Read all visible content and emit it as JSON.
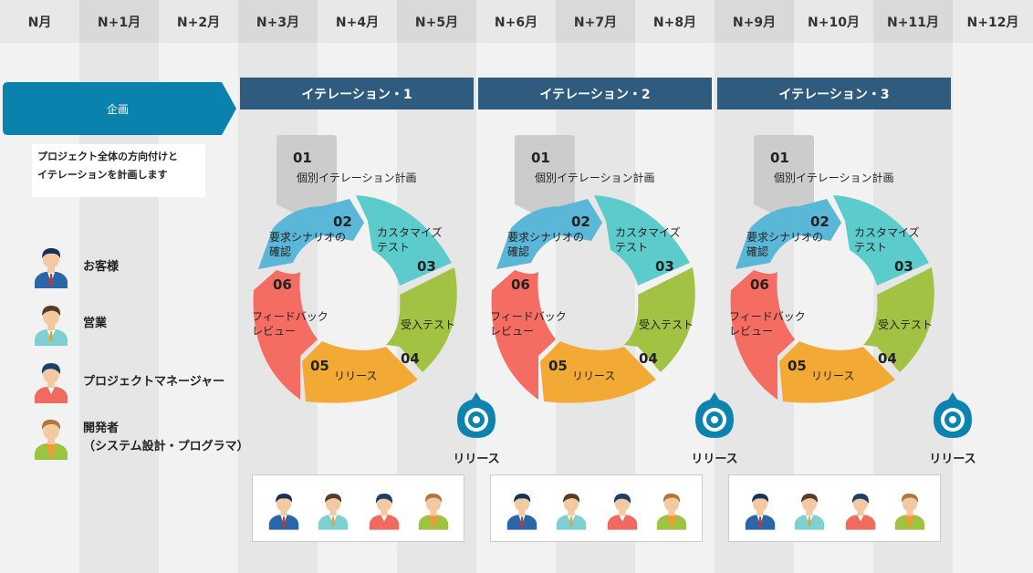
{
  "months": [
    "N月",
    "N+1月",
    "N+2月",
    "N+3月",
    "N+4月",
    "N+5月",
    "N+6月",
    "N+7月",
    "N+8月",
    "N+9月",
    "N+10月",
    "N+11月",
    "N+12月"
  ],
  "planning": {
    "label": "企画",
    "note_line1": "プロジェクト全体の方向付けと",
    "note_line2": "イテレーションを計画します"
  },
  "legend": {
    "customer": "お客様",
    "sales": "営業",
    "pm": "プロジェクトマネージャー",
    "dev_line1": "開発者",
    "dev_line2": "（システム設計・プログラマ）"
  },
  "iterations": [
    {
      "title": "イテレーション・1",
      "release": "リリース"
    },
    {
      "title": "イテレーション・2",
      "release": "リリース"
    },
    {
      "title": "イテレーション・3",
      "release": "リリース"
    }
  ],
  "cycle": {
    "s01_num": "01",
    "s01_text": "個別イテレーション計画",
    "s02_num": "02",
    "s02_line1": "要求シナリオの",
    "s02_line2": "確認",
    "s03_num": "03",
    "s03_line1": "カスタマイズ",
    "s03_line2": "テスト",
    "s04_num": "04",
    "s04_text": "受入テスト",
    "s05_num": "05",
    "s05_text": "リリース",
    "s06_num": "06",
    "s06_line1": "フィードバック",
    "s06_line2": "レビュー"
  },
  "colors": {
    "header_bg": "#e8e8e8",
    "header_shade": "#d9d9d9",
    "band_shade": "#e6e6e6",
    "planning": "#0a82ad",
    "iteration_head": "#2f5b7e",
    "seg02": "#5bb7d8",
    "seg03": "#5ccbcc",
    "seg04": "#a1c243",
    "seg05": "#f2aa35",
    "seg06": "#f56c62",
    "plan_box": "#cccccc",
    "release_pin": "#0d83b0"
  }
}
